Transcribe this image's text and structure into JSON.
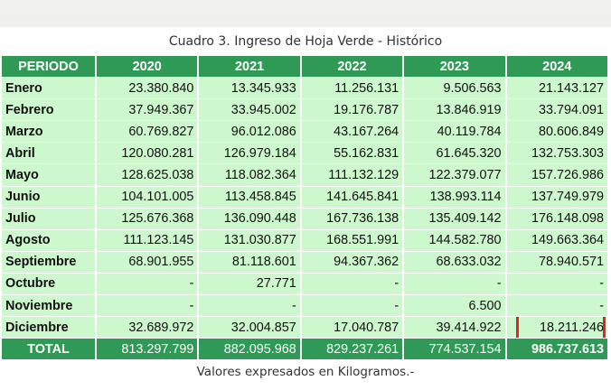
{
  "caption": "Cuadro 3. Ingreso de Hoja Verde - Histórico",
  "footnote": "Valores expresados en Kilogramos.-",
  "colors": {
    "header_green": "#2e9a55",
    "cell_green": "#cdf7cc",
    "highlight_red": "#d8262a"
  },
  "table": {
    "headers": [
      "PERIODO",
      "2020",
      "2021",
      "2022",
      "2023",
      "2024"
    ],
    "rows": [
      {
        "label": "Enero",
        "values": [
          "23.380.840",
          "13.345.933",
          "11.256.131",
          "9.506.563",
          "21.143.127"
        ]
      },
      {
        "label": "Febrero",
        "values": [
          "37.949.367",
          "33.945.002",
          "19.176.787",
          "13.846.919",
          "33.794.091"
        ]
      },
      {
        "label": "Marzo",
        "values": [
          "60.769.827",
          "96.012.086",
          "43.167.264",
          "40.119.784",
          "80.606.849"
        ]
      },
      {
        "label": "Abril",
        "values": [
          "120.080.281",
          "126.979.184",
          "55.162.831",
          "61.645.320",
          "132.753.303"
        ]
      },
      {
        "label": "Mayo",
        "values": [
          "128.625.038",
          "118.082.364",
          "111.132.129",
          "122.379.077",
          "157.726.986"
        ]
      },
      {
        "label": "Junio",
        "values": [
          "104.101.005",
          "113.458.845",
          "141.645.841",
          "138.993.114",
          "137.749.979"
        ]
      },
      {
        "label": "Julio",
        "values": [
          "125.676.368",
          "136.090.448",
          "167.736.138",
          "135.409.142",
          "176.148.098"
        ]
      },
      {
        "label": "Agosto",
        "values": [
          "111.123.145",
          "131.030.877",
          "168.551.991",
          "144.582.780",
          "149.663.364"
        ]
      },
      {
        "label": "Septiembre",
        "values": [
          "68.901.955",
          "81.118.601",
          "94.367.362",
          "68.633.032",
          "78.940.571"
        ]
      },
      {
        "label": "Octubre",
        "values": [
          "-",
          "27.771",
          "-",
          "-",
          "-"
        ]
      },
      {
        "label": "Noviembre",
        "values": [
          "-",
          "-",
          "-",
          "6.500",
          "-"
        ]
      },
      {
        "label": "Diciembre",
        "values": [
          "32.689.972",
          "32.004.857",
          "17.040.787",
          "39.414.922",
          "18.211.246"
        ]
      }
    ],
    "total": {
      "label": "TOTAL",
      "values": [
        "813.297.799",
        "882.095.968",
        "829.237.261",
        "774.537.154",
        "986.737.613"
      ]
    }
  }
}
